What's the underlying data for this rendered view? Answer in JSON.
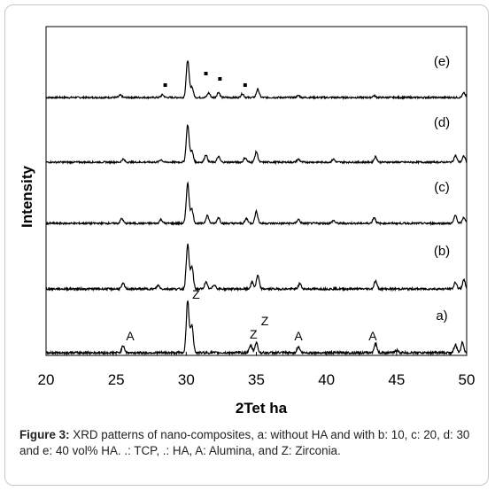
{
  "chart_data": {
    "type": "line",
    "xlabel": "2Tet ha",
    "ylabel": "Intensity",
    "xlim": [
      20,
      50
    ],
    "xticks": [
      "20",
      "25",
      "30",
      "35",
      "40",
      "45",
      "50"
    ],
    "grid": false,
    "legend": "none",
    "series": [
      {
        "name": "(e)",
        "peaks": [
          [
            25.3,
            0.06
          ],
          [
            28.3,
            0.07
          ],
          [
            30.1,
            1.0
          ],
          [
            30.4,
            0.28
          ],
          [
            31.6,
            0.12
          ],
          [
            32.3,
            0.14
          ],
          [
            34.0,
            0.1
          ],
          [
            35.1,
            0.22
          ],
          [
            38.0,
            0.05
          ],
          [
            43.4,
            0.05
          ],
          [
            49.8,
            0.12
          ]
        ],
        "markers_x": [
          28.5,
          31.4,
          32.4,
          34.2
        ]
      },
      {
        "name": "(d)",
        "peaks": [
          [
            25.5,
            0.08
          ],
          [
            28.2,
            0.07
          ],
          [
            30.1,
            1.0
          ],
          [
            30.4,
            0.3
          ],
          [
            31.4,
            0.2
          ],
          [
            32.3,
            0.15
          ],
          [
            34.2,
            0.12
          ],
          [
            35.0,
            0.28
          ],
          [
            38.0,
            0.08
          ],
          [
            40.5,
            0.08
          ],
          [
            43.5,
            0.15
          ],
          [
            49.2,
            0.18
          ],
          [
            49.8,
            0.16
          ]
        ]
      },
      {
        "name": "(c)",
        "peaks": [
          [
            25.4,
            0.12
          ],
          [
            28.2,
            0.1
          ],
          [
            30.1,
            1.0
          ],
          [
            30.4,
            0.35
          ],
          [
            31.5,
            0.2
          ],
          [
            32.3,
            0.15
          ],
          [
            34.3,
            0.12
          ],
          [
            35.0,
            0.3
          ],
          [
            38.0,
            0.1
          ],
          [
            40.5,
            0.07
          ],
          [
            43.4,
            0.15
          ],
          [
            49.2,
            0.2
          ],
          [
            49.8,
            0.15
          ]
        ]
      },
      {
        "name": "(b)",
        "peaks": [
          [
            25.5,
            0.12
          ],
          [
            28.0,
            0.08
          ],
          [
            30.1,
            1.0
          ],
          [
            30.4,
            0.5
          ],
          [
            31.4,
            0.15
          ],
          [
            32.0,
            0.1
          ],
          [
            34.7,
            0.15
          ],
          [
            35.1,
            0.3
          ],
          [
            38.1,
            0.12
          ],
          [
            43.5,
            0.18
          ],
          [
            49.2,
            0.15
          ],
          [
            49.8,
            0.2
          ]
        ]
      },
      {
        "name": "a)",
        "peaks": [
          [
            25.5,
            0.14
          ],
          [
            30.1,
            1.0
          ],
          [
            30.4,
            0.55
          ],
          [
            34.6,
            0.14
          ],
          [
            35.0,
            0.2
          ],
          [
            38.0,
            0.12
          ],
          [
            43.5,
            0.18
          ],
          [
            45.0,
            0.05
          ],
          [
            49.2,
            0.15
          ],
          [
            49.7,
            0.2
          ]
        ]
      }
    ],
    "annotations": [
      {
        "text": "A",
        "x": 26.0
      },
      {
        "text": "Z",
        "x": 30.7
      },
      {
        "text": "Z",
        "x": 34.8
      },
      {
        "text": "Z",
        "x": 35.6
      },
      {
        "text": "A",
        "x": 38.0
      },
      {
        "text": "A",
        "x": 43.3
      }
    ]
  },
  "caption": {
    "label": "Figure 3:",
    "text": " XRD patterns of nano-composites, a: without HA and with b: 10, c: 20, d: 30 and e: 40 vol% HA. .: TCP, .: HA, A: Alumina, and Z: Zirconia."
  }
}
